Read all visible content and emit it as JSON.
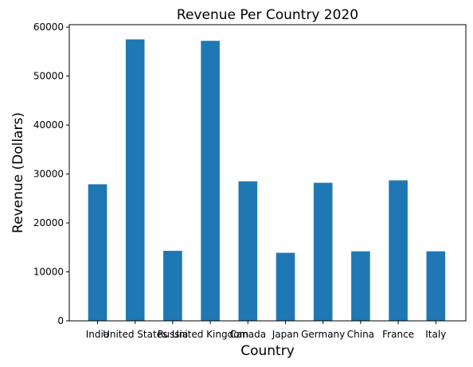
{
  "chart_data": {
    "type": "bar",
    "title": "Revenue Per Country 2020",
    "xlabel": "Country",
    "ylabel": "Revenue (Dollars)",
    "categories": [
      "India",
      "United States",
      "Russia",
      "United Kingdom",
      "Canada",
      "Japan",
      "Germany",
      "China",
      "France",
      "Italy"
    ],
    "values": [
      27900,
      57500,
      14300,
      57200,
      28500,
      13900,
      28200,
      14200,
      28700,
      14200
    ],
    "ylim": [
      0,
      60500
    ],
    "yticks": [
      0,
      10000,
      20000,
      30000,
      40000,
      50000,
      60000
    ],
    "grid": false,
    "legend": "none",
    "bar_color": "#1f77b4"
  }
}
